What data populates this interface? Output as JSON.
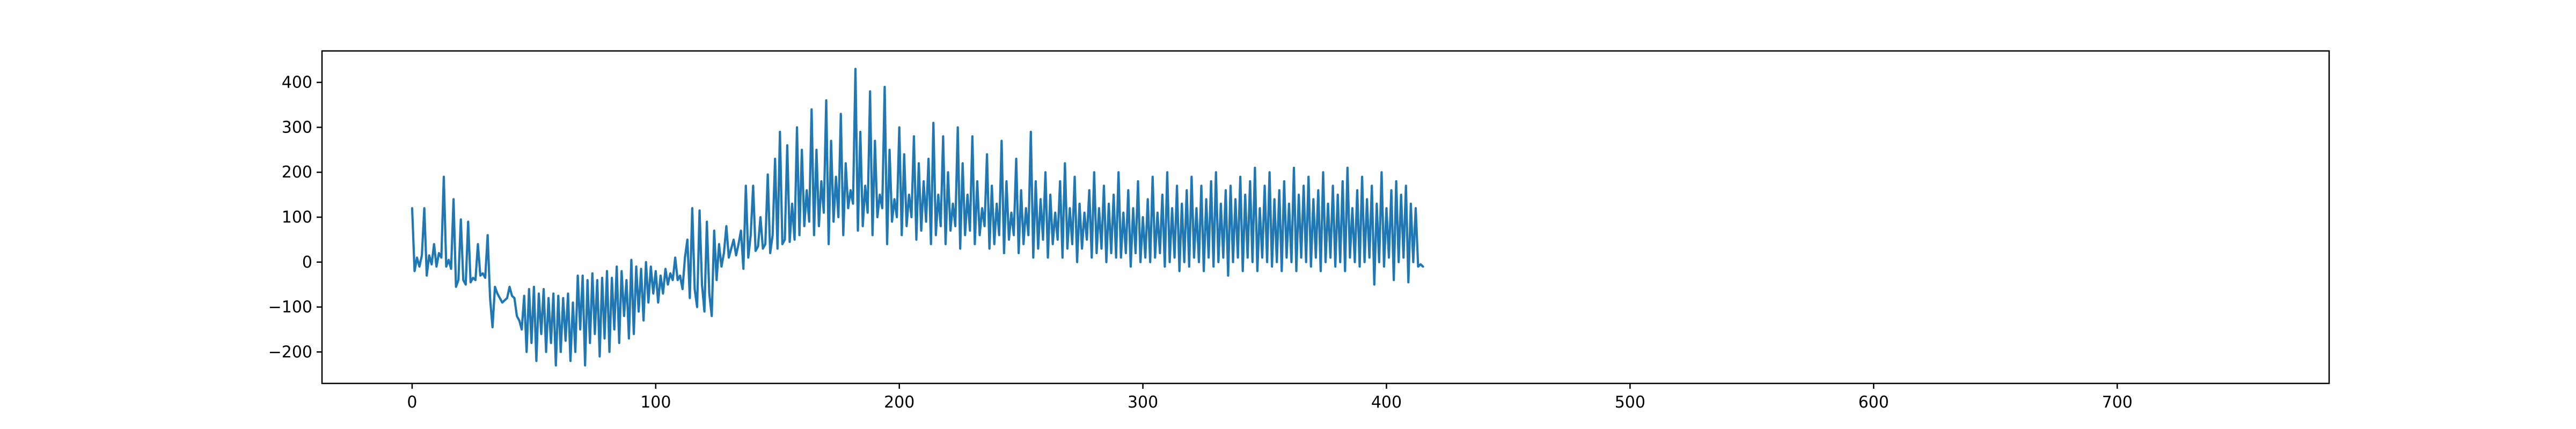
{
  "colors": {
    "series": "#1f77b4",
    "axes": "#000000",
    "background": "#ffffff"
  },
  "chart_data": {
    "type": "line",
    "title": "",
    "xlabel": "",
    "ylabel": "",
    "xlim": [
      -37,
      787
    ],
    "ylim": [
      -270,
      470
    ],
    "grid": false,
    "legend": "none",
    "xticks": [
      0,
      100,
      200,
      300,
      400,
      500,
      600,
      700
    ],
    "yticks": [
      -200,
      -100,
      0,
      100,
      200,
      300,
      400
    ],
    "x_tick_labels": [
      "0",
      "100",
      "200",
      "300",
      "400",
      "500",
      "600",
      "700"
    ],
    "y_tick_labels": [
      "−200",
      "−100",
      "0",
      "100",
      "200",
      "300",
      "400"
    ],
    "series": [
      {
        "x_start": 0,
        "x_step": 1,
        "values": [
          120,
          -20,
          10,
          -10,
          15,
          120,
          -30,
          15,
          -5,
          40,
          -10,
          20,
          10,
          190,
          -10,
          5,
          -15,
          140,
          -55,
          -40,
          95,
          -40,
          -50,
          90,
          -45,
          -35,
          -40,
          40,
          -30,
          -25,
          -35,
          60,
          -80,
          -145,
          -55,
          -70,
          -80,
          -90,
          -85,
          -80,
          -55,
          -75,
          -80,
          -120,
          -130,
          -150,
          -75,
          -200,
          -60,
          -180,
          -55,
          -220,
          -70,
          -160,
          -60,
          -200,
          -80,
          -180,
          -70,
          -230,
          -75,
          -200,
          -80,
          -175,
          -70,
          -220,
          -90,
          -200,
          -30,
          -150,
          -30,
          -230,
          -40,
          -180,
          -25,
          -160,
          -40,
          -210,
          -35,
          -170,
          -20,
          -200,
          -35,
          -150,
          -10,
          -180,
          -20,
          -120,
          -40,
          -170,
          5,
          -160,
          -10,
          -110,
          -15,
          -130,
          0,
          -90,
          -10,
          -70,
          -20,
          -90,
          -30,
          -70,
          -15,
          -50,
          -25,
          -40,
          10,
          -40,
          -30,
          -60,
          10,
          50,
          -80,
          120,
          -60,
          -100,
          115,
          -50,
          -110,
          90,
          -70,
          -120,
          70,
          -40,
          40,
          -10,
          20,
          80,
          10,
          30,
          50,
          15,
          40,
          70,
          -15,
          170,
          10,
          60,
          170,
          25,
          35,
          100,
          30,
          40,
          195,
          20,
          60,
          230,
          30,
          290,
          40,
          50,
          260,
          45,
          130,
          50,
          300,
          60,
          250,
          80,
          160,
          90,
          340,
          60,
          250,
          80,
          180,
          110,
          360,
          40,
          270,
          90,
          190,
          100,
          330,
          60,
          220,
          120,
          160,
          130,
          430,
          70,
          290,
          80,
          170,
          110,
          380,
          60,
          270,
          100,
          150,
          120,
          390,
          40,
          250,
          90,
          140,
          100,
          300,
          60,
          240,
          80,
          150,
          100,
          280,
          50,
          220,
          70,
          180,
          90,
          230,
          40,
          310,
          60,
          150,
          80,
          280,
          40,
          200,
          70,
          130,
          80,
          300,
          30,
          220,
          60,
          150,
          70,
          280,
          40,
          180,
          60,
          120,
          80,
          240,
          30,
          170,
          40,
          130,
          60,
          270,
          20,
          180,
          50,
          110,
          60,
          230,
          20,
          160,
          40,
          120,
          60,
          290,
          10,
          180,
          30,
          140,
          50,
          200,
          10,
          150,
          40,
          110,
          50,
          180,
          10,
          220,
          30,
          120,
          40,
          190,
          0,
          130,
          30,
          110,
          50,
          160,
          10,
          200,
          20,
          120,
          30,
          170,
          0,
          130,
          20,
          150,
          10,
          200,
          10,
          110,
          20,
          160,
          -10,
          120,
          20,
          180,
          0,
          100,
          10,
          140,
          0,
          190,
          10,
          110,
          20,
          150,
          -10,
          200,
          0,
          120,
          10,
          170,
          -20,
          130,
          0,
          160,
          -10,
          190,
          10,
          120,
          0,
          170,
          -20,
          140,
          10,
          180,
          -10,
          200,
          0,
          130,
          10,
          160,
          -30,
          170,
          0,
          140,
          10,
          190,
          -20,
          150,
          10,
          180,
          0,
          210,
          -20,
          120,
          10,
          170,
          0,
          200,
          -10,
          140,
          0,
          160,
          -20,
          180,
          10,
          130,
          0,
          210,
          -20,
          150,
          10,
          170,
          0,
          190,
          -10,
          140,
          10,
          160,
          -20,
          200,
          0,
          130,
          10,
          170,
          -10,
          150,
          0,
          180,
          -20,
          210,
          10,
          120,
          0,
          160,
          -10,
          190,
          0,
          140,
          10,
          170,
          -50,
          130,
          0,
          200,
          -10,
          120,
          10,
          160,
          -40,
          180,
          0,
          150,
          10,
          170,
          -45,
          130,
          0,
          120,
          -10,
          -5,
          -10
        ]
      }
    ]
  }
}
